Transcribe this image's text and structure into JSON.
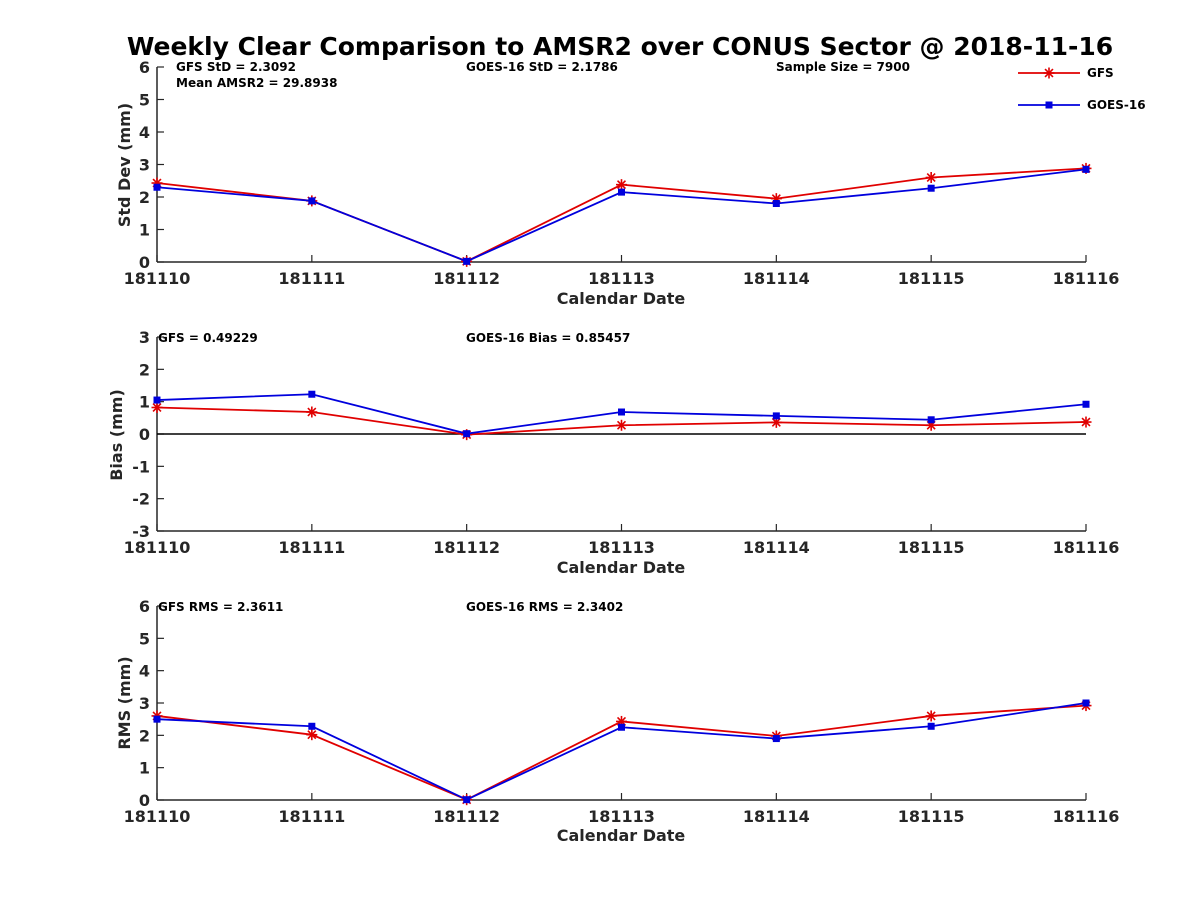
{
  "figure_title": "Weekly Clear Comparison to AMSR2 over CONUS Sector @ 2018-11-16",
  "colors": {
    "gfs": "#e00000",
    "goes16": "#0000dd",
    "axis": "#262626",
    "zero_line": "#000000"
  },
  "legend": {
    "entries": [
      {
        "name": "GFS",
        "marker": "asterisk",
        "color": "#e00000"
      },
      {
        "name": "GOES-16",
        "marker": "square",
        "color": "#0000dd"
      }
    ]
  },
  "chart_data": [
    {
      "type": "line",
      "id": "stddev",
      "title": "Weekly Clear Comparison to AMSR2 over CONUS Sector @ 2018-11-16",
      "xlabel": "Calendar Date",
      "ylabel": "Std Dev (mm)",
      "categories": [
        "181110",
        "181111",
        "181112",
        "181113",
        "181114",
        "181115",
        "181116"
      ],
      "ylim": [
        0,
        6
      ],
      "yticks": [
        "0",
        "1",
        "2",
        "3",
        "4",
        "5",
        "6"
      ],
      "series": [
        {
          "name": "GFS",
          "values": [
            2.43,
            1.88,
            0.02,
            2.38,
            1.95,
            2.6,
            2.88
          ]
        },
        {
          "name": "GOES-16",
          "values": [
            2.3,
            1.88,
            0.02,
            2.15,
            1.8,
            2.27,
            2.85
          ]
        }
      ],
      "annotations": [
        "GFS StD = 2.3092",
        "Mean AMSR2 = 29.8938",
        "GOES-16 StD = 2.1786",
        "Sample Size = 7900"
      ]
    },
    {
      "type": "line",
      "id": "bias",
      "xlabel": "Calendar Date",
      "ylabel": "Bias (mm)",
      "categories": [
        "181110",
        "181111",
        "181112",
        "181113",
        "181114",
        "181115",
        "181116"
      ],
      "ylim": [
        -3,
        3
      ],
      "yticks": [
        "-3",
        "-2",
        "-1",
        "0",
        "1",
        "2",
        "3"
      ],
      "zero_line": true,
      "series": [
        {
          "name": "GFS",
          "values": [
            0.82,
            0.68,
            -0.02,
            0.27,
            0.36,
            0.27,
            0.37
          ]
        },
        {
          "name": "GOES-16",
          "values": [
            1.05,
            1.23,
            0.01,
            0.68,
            0.56,
            0.44,
            0.92
          ]
        }
      ],
      "annotations": [
        "GFS = 0.49229",
        "GOES-16 Bias  = 0.85457"
      ]
    },
    {
      "type": "line",
      "id": "rms",
      "xlabel": "Calendar Date",
      "ylabel": "RMS (mm)",
      "categories": [
        "181110",
        "181111",
        "181112",
        "181113",
        "181114",
        "181115",
        "181116"
      ],
      "ylim": [
        0,
        6
      ],
      "yticks": [
        "0",
        "1",
        "2",
        "3",
        "4",
        "5",
        "6"
      ],
      "series": [
        {
          "name": "GFS",
          "values": [
            2.6,
            2.02,
            0.01,
            2.43,
            1.98,
            2.6,
            2.92
          ]
        },
        {
          "name": "GOES-16",
          "values": [
            2.5,
            2.28,
            0.01,
            2.25,
            1.9,
            2.28,
            3.0
          ]
        }
      ],
      "annotations": [
        "GFS RMS = 2.3611",
        "GOES-16 RMS = 2.3402"
      ]
    }
  ]
}
